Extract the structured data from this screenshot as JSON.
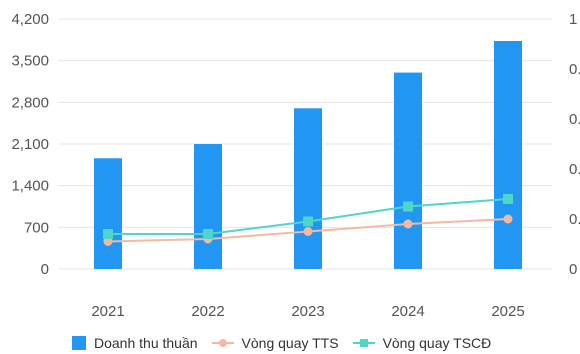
{
  "colors": {
    "bar": "#2196f3",
    "line_tts": "#f4b9a0",
    "line_tscd": "#4fd6c8",
    "grid": "#e5e5e5",
    "text": "#555555"
  },
  "chart_data": {
    "type": "bar",
    "categories": [
      "2021",
      "2022",
      "2023",
      "2024",
      "2025"
    ],
    "series": [
      {
        "name": "Doanh thu thuần",
        "type": "bar",
        "axis": "left",
        "values": [
          1860,
          2100,
          2700,
          3300,
          3830
        ]
      },
      {
        "name": "Vòng quay TTS",
        "type": "line",
        "axis": "right",
        "marker": "circle",
        "values": [
          0.11,
          0.12,
          0.15,
          0.18,
          0.2
        ]
      },
      {
        "name": "Vòng quay TSCĐ",
        "type": "line",
        "axis": "right",
        "marker": "square",
        "values": [
          0.14,
          0.14,
          0.19,
          0.25,
          0.28
        ]
      }
    ],
    "y_left": {
      "ticks": [
        "0",
        "700",
        "1,400",
        "2,100",
        "2,800",
        "3,500",
        "4,200"
      ],
      "range": [
        0,
        4200
      ]
    },
    "y_right": {
      "tick_labels": [
        "0",
        "0.",
        "0.",
        "0.",
        "0.",
        "1"
      ],
      "range": [
        0,
        1
      ]
    },
    "grid": true,
    "legend_position": "bottom"
  }
}
